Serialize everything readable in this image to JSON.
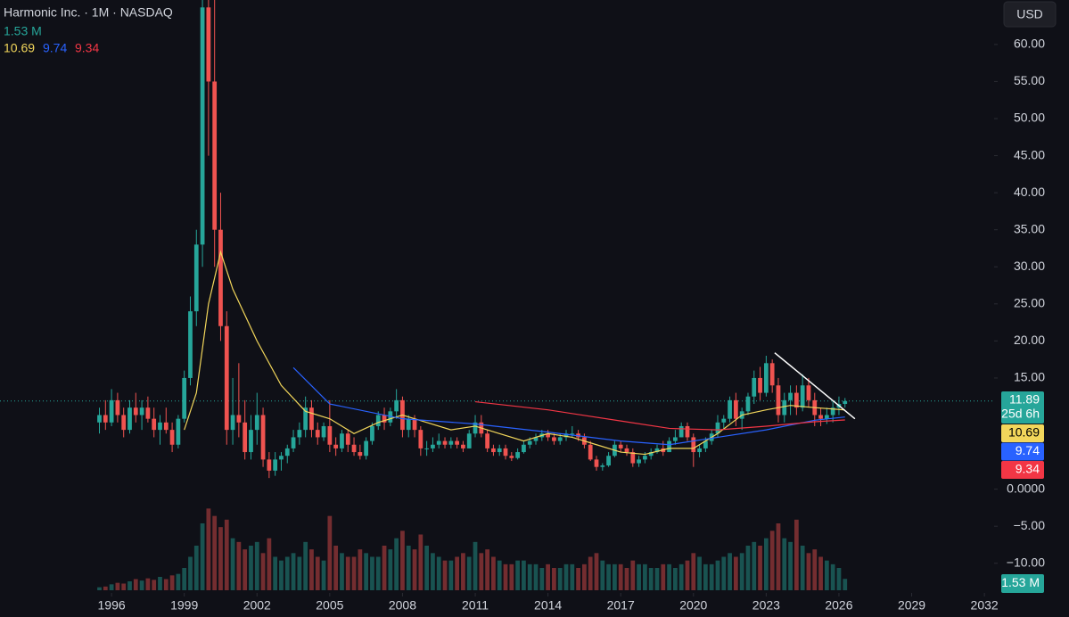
{
  "chart_data": {
    "type": "candlestick",
    "title": "Harmonic Inc. · 1M · NASDAQ",
    "currency": "USD",
    "countdown": "25d 6h",
    "last_volume_label": "1.53 M",
    "up_color": "#26a69a",
    "down_color": "#ef5350",
    "xlim": [
      1991.4,
      2032.4
    ],
    "xticks": [
      1996,
      1999,
      2002,
      2005,
      2008,
      2011,
      2014,
      2017,
      2020,
      2023,
      2026,
      2029,
      2032
    ],
    "ylim": [
      -14,
      66
    ],
    "yticks": [
      {
        "value": 60,
        "label": "60.00"
      },
      {
        "value": 55,
        "label": "55.00"
      },
      {
        "value": 50,
        "label": "50.00"
      },
      {
        "value": 45,
        "label": "45.00"
      },
      {
        "value": 40,
        "label": "40.00"
      },
      {
        "value": 35,
        "label": "35.00"
      },
      {
        "value": 30,
        "label": "30.00"
      },
      {
        "value": 25,
        "label": "25.00"
      },
      {
        "value": 20,
        "label": "20.00"
      },
      {
        "value": 15,
        "label": "15.00"
      },
      {
        "value": 0,
        "label": "0.0000"
      },
      {
        "value": -5,
        "label": "−5.00"
      },
      {
        "value": -10,
        "label": "−10.00"
      }
    ],
    "vlim": [
      0,
      12
    ],
    "x": [
      1995.5,
      1995.75,
      1996,
      1996.25,
      1996.5,
      1996.75,
      1997,
      1997.25,
      1997.5,
      1997.75,
      1998,
      1998.25,
      1998.5,
      1998.75,
      1999,
      1999.25,
      1999.5,
      1999.75,
      2000,
      2000.25,
      2000.5,
      2000.75,
      2001,
      2001.25,
      2001.5,
      2001.75,
      2002,
      2002.25,
      2002.5,
      2002.75,
      2003,
      2003.25,
      2003.5,
      2003.75,
      2004,
      2004.25,
      2004.5,
      2004.75,
      2005,
      2005.25,
      2005.5,
      2005.75,
      2006,
      2006.25,
      2006.5,
      2006.75,
      2007,
      2007.25,
      2007.5,
      2007.75,
      2008,
      2008.25,
      2008.5,
      2008.75,
      2009,
      2009.25,
      2009.5,
      2009.75,
      2010,
      2010.25,
      2010.5,
      2010.75,
      2011,
      2011.25,
      2011.5,
      2011.75,
      2012,
      2012.25,
      2012.5,
      2012.75,
      2013,
      2013.25,
      2013.5,
      2013.75,
      2014,
      2014.25,
      2014.5,
      2014.75,
      2015,
      2015.25,
      2015.5,
      2015.75,
      2016,
      2016.25,
      2016.5,
      2016.75,
      2017,
      2017.25,
      2017.5,
      2017.75,
      2018,
      2018.25,
      2018.5,
      2018.75,
      2019,
      2019.25,
      2019.5,
      2019.75,
      2020,
      2020.25,
      2020.5,
      2020.75,
      2021,
      2021.25,
      2021.5,
      2021.75,
      2022,
      2022.25,
      2022.5,
      2022.75,
      2023,
      2023.25,
      2023.5,
      2023.75,
      2024,
      2024.25,
      2024.5,
      2024.75,
      2025,
      2025.25,
      2025.5,
      2025.75,
      2026,
      2026.25
    ],
    "ohlc": [
      [
        9,
        11,
        7.5,
        10
      ],
      [
        10,
        12,
        8,
        9
      ],
      [
        9,
        13.5,
        8.5,
        12
      ],
      [
        12,
        13,
        9,
        10
      ],
      [
        10,
        11,
        7,
        8
      ],
      [
        8,
        12,
        7.5,
        11
      ],
      [
        11,
        13,
        9,
        10
      ],
      [
        10,
        12,
        8,
        11
      ],
      [
        11,
        12.5,
        9,
        9.5
      ],
      [
        9.5,
        11,
        7,
        8
      ],
      [
        8,
        10,
        6,
        9
      ],
      [
        9,
        11,
        7.5,
        8
      ],
      [
        8,
        9,
        5,
        6
      ],
      [
        6,
        10,
        5.5,
        9.5
      ],
      [
        9.5,
        16,
        9,
        15
      ],
      [
        15,
        26,
        14,
        24
      ],
      [
        24,
        35,
        22,
        33
      ],
      [
        33,
        72,
        30,
        65
      ],
      [
        65,
        72,
        45,
        55
      ],
      [
        55,
        70,
        30,
        35
      ],
      [
        35,
        40,
        20,
        22
      ],
      [
        22,
        24,
        6,
        8
      ],
      [
        8,
        15,
        6,
        10
      ],
      [
        10,
        17,
        7,
        9
      ],
      [
        9,
        12,
        4,
        5
      ],
      [
        5,
        10,
        4,
        8
      ],
      [
        8,
        13,
        6,
        10
      ],
      [
        10,
        11,
        3,
        4
      ],
      [
        4,
        5,
        1.5,
        2.5
      ],
      [
        2.5,
        5,
        1.8,
        4
      ],
      [
        4,
        5,
        2.5,
        4.5
      ],
      [
        4.5,
        6,
        3.5,
        5.5
      ],
      [
        5.5,
        8,
        5,
        7
      ],
      [
        7,
        9,
        6,
        8
      ],
      [
        8,
        12.5,
        7,
        11
      ],
      [
        11,
        12,
        7,
        8
      ],
      [
        8,
        9,
        6,
        7
      ],
      [
        7,
        9,
        6.5,
        8.5
      ],
      [
        8.5,
        12,
        5,
        6
      ],
      [
        6,
        7,
        4.5,
        5.5
      ],
      [
        5.5,
        8,
        5,
        7.5
      ],
      [
        7.5,
        8,
        5,
        6
      ],
      [
        6,
        7,
        4.5,
        5
      ],
      [
        5,
        6,
        4,
        4.5
      ],
      [
        4.5,
        7,
        4,
        6.5
      ],
      [
        6.5,
        9,
        6,
        8.5
      ],
      [
        8.5,
        10.5,
        8,
        10
      ],
      [
        10,
        11,
        8,
        9
      ],
      [
        9,
        11,
        8.5,
        10.5
      ],
      [
        10.5,
        13.5,
        9.5,
        12
      ],
      [
        12,
        12.5,
        7,
        8
      ],
      [
        8,
        10,
        7,
        9.5
      ],
      [
        9.5,
        10,
        7,
        8
      ],
      [
        8,
        8.5,
        4.5,
        5.5
      ],
      [
        5.5,
        6.5,
        4.5,
        5.5
      ],
      [
        5.5,
        7,
        5,
        6
      ],
      [
        6,
        7.5,
        5.5,
        6.5
      ],
      [
        6.5,
        7,
        5.5,
        6
      ],
      [
        6,
        7,
        5.5,
        6.5
      ],
      [
        6.5,
        7,
        5.5,
        6
      ],
      [
        6,
        6.5,
        5,
        5.5
      ],
      [
        5.5,
        8,
        5.5,
        7.5
      ],
      [
        7.5,
        10,
        7,
        9
      ],
      [
        9,
        10,
        7,
        7.5
      ],
      [
        7.5,
        8,
        5,
        5.5
      ],
      [
        5.5,
        6,
        4.5,
        5
      ],
      [
        5,
        6,
        4.5,
        5.5
      ],
      [
        5.5,
        6,
        4,
        4.5
      ],
      [
        4.5,
        5,
        3.8,
        4.2
      ],
      [
        4.2,
        5.5,
        4,
        5
      ],
      [
        5,
        6.5,
        4.8,
        6
      ],
      [
        6,
        7,
        5.5,
        6.5
      ],
      [
        6.5,
        7.5,
        6,
        7
      ],
      [
        7,
        8,
        6.5,
        7.5
      ],
      [
        7.5,
        8,
        6.5,
        7
      ],
      [
        7,
        7.5,
        6,
        6.5
      ],
      [
        6.5,
        7.5,
        6,
        7
      ],
      [
        7,
        8,
        6.5,
        7.5
      ],
      [
        7.5,
        8.5,
        7,
        7.5
      ],
      [
        7.5,
        8,
        6.5,
        7
      ],
      [
        7,
        7.5,
        5.5,
        6
      ],
      [
        6,
        6.5,
        3.8,
        4
      ],
      [
        4,
        4.5,
        2.5,
        3
      ],
      [
        3,
        3.5,
        2.5,
        3.2
      ],
      [
        3.2,
        5,
        3,
        4.5
      ],
      [
        4.5,
        6.5,
        4.3,
        6
      ],
      [
        6,
        6.5,
        5,
        5.5
      ],
      [
        5.5,
        6,
        4.5,
        5
      ],
      [
        5,
        5.5,
        3,
        3.5
      ],
      [
        3.5,
        4.5,
        3,
        4
      ],
      [
        4,
        5,
        3.5,
        4.5
      ],
      [
        4.5,
        5.5,
        4,
        5
      ],
      [
        5,
        6,
        4.8,
        5.5
      ],
      [
        5.5,
        6.5,
        4.5,
        5
      ],
      [
        5,
        7,
        5,
        6.5
      ],
      [
        6.5,
        8,
        6,
        7
      ],
      [
        7,
        9,
        7,
        8.5
      ],
      [
        8.5,
        9,
        6.5,
        7
      ],
      [
        7,
        7.5,
        3,
        5
      ],
      [
        5,
        6,
        4.3,
        5.5
      ],
      [
        5.5,
        7,
        5,
        6.5
      ],
      [
        6.5,
        8,
        6,
        7.5
      ],
      [
        7.5,
        10,
        7,
        9
      ],
      [
        9,
        10,
        8,
        9.5
      ],
      [
        9.5,
        12.5,
        9,
        12
      ],
      [
        12,
        13,
        8.5,
        9.5
      ],
      [
        9.5,
        11,
        8,
        10.5
      ],
      [
        10.5,
        13,
        10,
        12.5
      ],
      [
        12.5,
        16,
        11.5,
        15
      ],
      [
        15,
        16.5,
        12,
        13
      ],
      [
        13,
        18,
        12.5,
        17
      ],
      [
        17,
        17.5,
        13,
        14
      ],
      [
        14,
        15,
        9,
        10
      ],
      [
        10,
        13,
        9,
        12
      ],
      [
        12,
        14,
        10,
        13
      ],
      [
        13,
        14,
        10,
        11
      ],
      [
        11,
        15.5,
        10.5,
        14
      ],
      [
        14,
        15,
        11,
        12
      ],
      [
        12,
        13,
        8.5,
        10
      ],
      [
        10,
        11,
        8.5,
        9.5
      ],
      [
        9.5,
        11,
        8.8,
        10
      ],
      [
        10,
        12,
        9,
        11
      ],
      [
        11,
        12.5,
        10,
        11.5
      ],
      [
        11.5,
        12.3,
        11,
        11.89
      ]
    ],
    "volume": [
      0.4,
      0.5,
      0.8,
      1.0,
      0.9,
      1.2,
      1.5,
      1.3,
      1.6,
      1.4,
      1.8,
      1.5,
      2.0,
      2.2,
      3.0,
      4.5,
      6.0,
      9.0,
      11.0,
      10.0,
      8.5,
      9.5,
      7.0,
      6.5,
      5.5,
      6.0,
      6.5,
      5.0,
      7.0,
      4.5,
      4.0,
      4.5,
      5.0,
      4.5,
      6.5,
      5.5,
      4.5,
      4.0,
      10.0,
      6.0,
      5.0,
      4.5,
      4.5,
      5.5,
      5.0,
      4.5,
      4.5,
      6.0,
      5.5,
      7.0,
      8.0,
      6.0,
      5.5,
      7.5,
      6.0,
      5.0,
      4.5,
      4.0,
      4.0,
      4.5,
      5.0,
      4.5,
      6.5,
      5.0,
      5.5,
      4.5,
      4.0,
      3.5,
      3.5,
      4.0,
      4.0,
      3.5,
      3.5,
      3.0,
      3.5,
      3.0,
      3.0,
      3.5,
      3.5,
      3.0,
      3.5,
      4.5,
      5.0,
      4.0,
      3.5,
      3.5,
      3.5,
      3.0,
      4.0,
      3.5,
      3.5,
      3.0,
      3.0,
      3.5,
      3.5,
      3.0,
      3.5,
      4.0,
      5.0,
      4.5,
      3.5,
      3.5,
      4.0,
      4.5,
      5.0,
      4.5,
      5.0,
      6.0,
      6.5,
      6.0,
      7.0,
      8.0,
      9.0,
      7.0,
      6.5,
      9.5,
      6.0,
      5.0,
      5.5,
      4.5,
      4.0,
      3.5,
      3.0,
      1.53
    ],
    "series": [
      {
        "color": "#f2d65b",
        "x": [
          1999,
          1999.5,
          2000,
          2000.5,
          2001,
          2002,
          2003,
          2004,
          2005,
          2006,
          2007,
          2008,
          2009,
          2010,
          2011,
          2012,
          2013,
          2014,
          2015,
          2016,
          2017,
          2018,
          2019,
          2020,
          2021,
          2022,
          2023,
          2024,
          2025,
          2026.25
        ],
        "values": [
          8,
          13,
          25,
          32,
          27,
          20,
          14,
          10.5,
          9.5,
          7.5,
          9,
          10,
          9,
          8,
          8.5,
          7.5,
          6.5,
          7.5,
          7,
          6,
          5,
          4.7,
          5.5,
          5.5,
          7.5,
          10,
          10.7,
          11.3,
          11,
          10.69
        ]
      },
      {
        "color": "#2962ff",
        "x": [
          2003.5,
          2005,
          2008,
          2011,
          2014,
          2017,
          2019,
          2021,
          2023,
          2025,
          2026.25
        ],
        "values": [
          16.4,
          11.5,
          9.5,
          8.8,
          7.7,
          6.5,
          6,
          7,
          8,
          9.3,
          9.74
        ]
      },
      {
        "color": "#f23645",
        "x": [
          2011,
          2014,
          2017,
          2019,
          2021,
          2023,
          2025,
          2026.25
        ],
        "values": [
          11.8,
          10.7,
          9.2,
          8.2,
          8,
          8.5,
          9.1,
          9.34
        ]
      }
    ],
    "trendline": {
      "color": "#ffffff",
      "x": [
        2023.35,
        2026.66
      ],
      "y": [
        18.4,
        9.5
      ]
    }
  }
}
